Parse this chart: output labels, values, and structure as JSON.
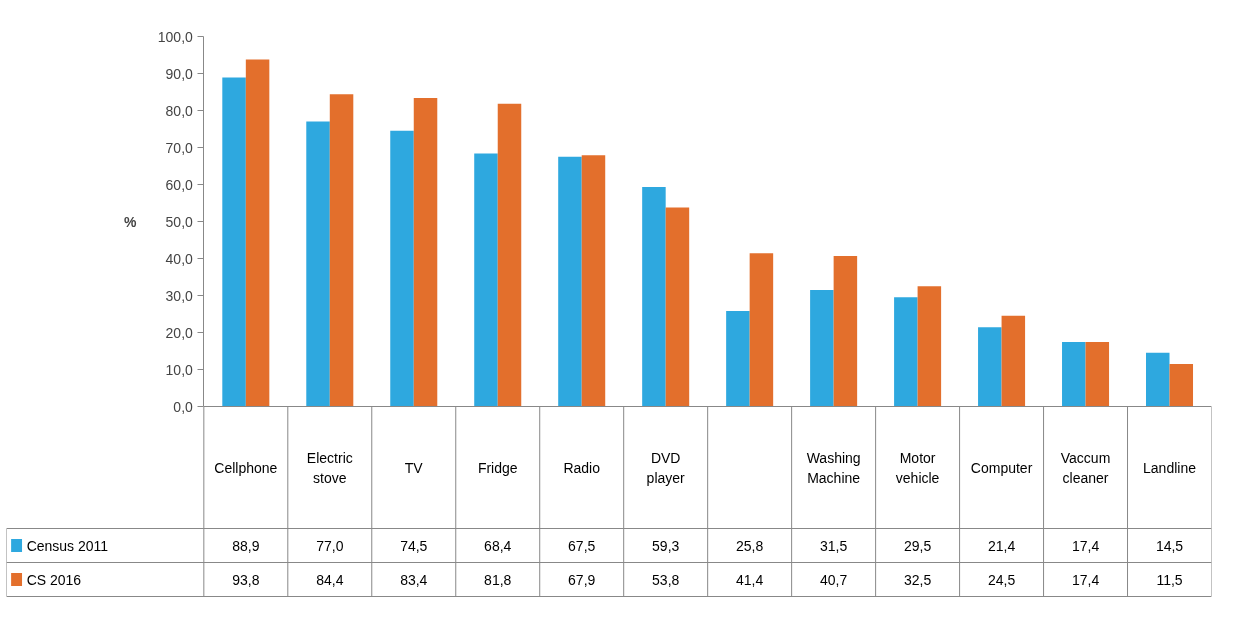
{
  "chart_data": {
    "type": "bar",
    "ylabel": "%",
    "categories": [
      "Cellphone",
      "Electric stove",
      "TV",
      "Fridge",
      "Radio",
      "DVD player",
      null,
      "Washing Machine",
      "Motor vehicle",
      "Computer",
      "Vaccum cleaner",
      "Landline"
    ],
    "series": [
      {
        "name": "Census 2011",
        "color": "#2ea8df",
        "values": [
          88.9,
          77.0,
          74.5,
          68.4,
          67.5,
          59.3,
          25.8,
          31.5,
          29.5,
          21.4,
          17.4,
          14.5
        ],
        "value_labels": [
          "88,9",
          "77,0",
          "74,5",
          "68,4",
          "67,5",
          "59,3",
          "25,8",
          "31,5",
          "29,5",
          "21,4",
          "17,4",
          "14,5"
        ]
      },
      {
        "name": "CS 2016",
        "color": "#e36f2c",
        "values": [
          93.8,
          84.4,
          83.4,
          81.8,
          67.9,
          53.8,
          41.4,
          40.7,
          32.5,
          24.5,
          17.4,
          11.5
        ],
        "value_labels": [
          "93,8",
          "84,4",
          "83,4",
          "81,8",
          "67,9",
          "53,8",
          "41,4",
          "40,7",
          "32,5",
          "24,5",
          "17,4",
          "11,5"
        ]
      }
    ],
    "ylim": [
      0,
      100
    ],
    "yticks": [
      {
        "value": 0,
        "label": "0,0"
      },
      {
        "value": 10,
        "label": "10,0"
      },
      {
        "value": 20,
        "label": "20,0"
      },
      {
        "value": 30,
        "label": "30,0"
      },
      {
        "value": 40,
        "label": "40,0"
      },
      {
        "value": 50,
        "label": "50,0"
      },
      {
        "value": 60,
        "label": "60,0"
      },
      {
        "value": 70,
        "label": "70,0"
      },
      {
        "value": 80,
        "label": "80,0"
      },
      {
        "value": 90,
        "label": "90,0"
      },
      {
        "value": 100,
        "label": "100,0"
      }
    ],
    "grid": false,
    "legend": "bottom"
  }
}
